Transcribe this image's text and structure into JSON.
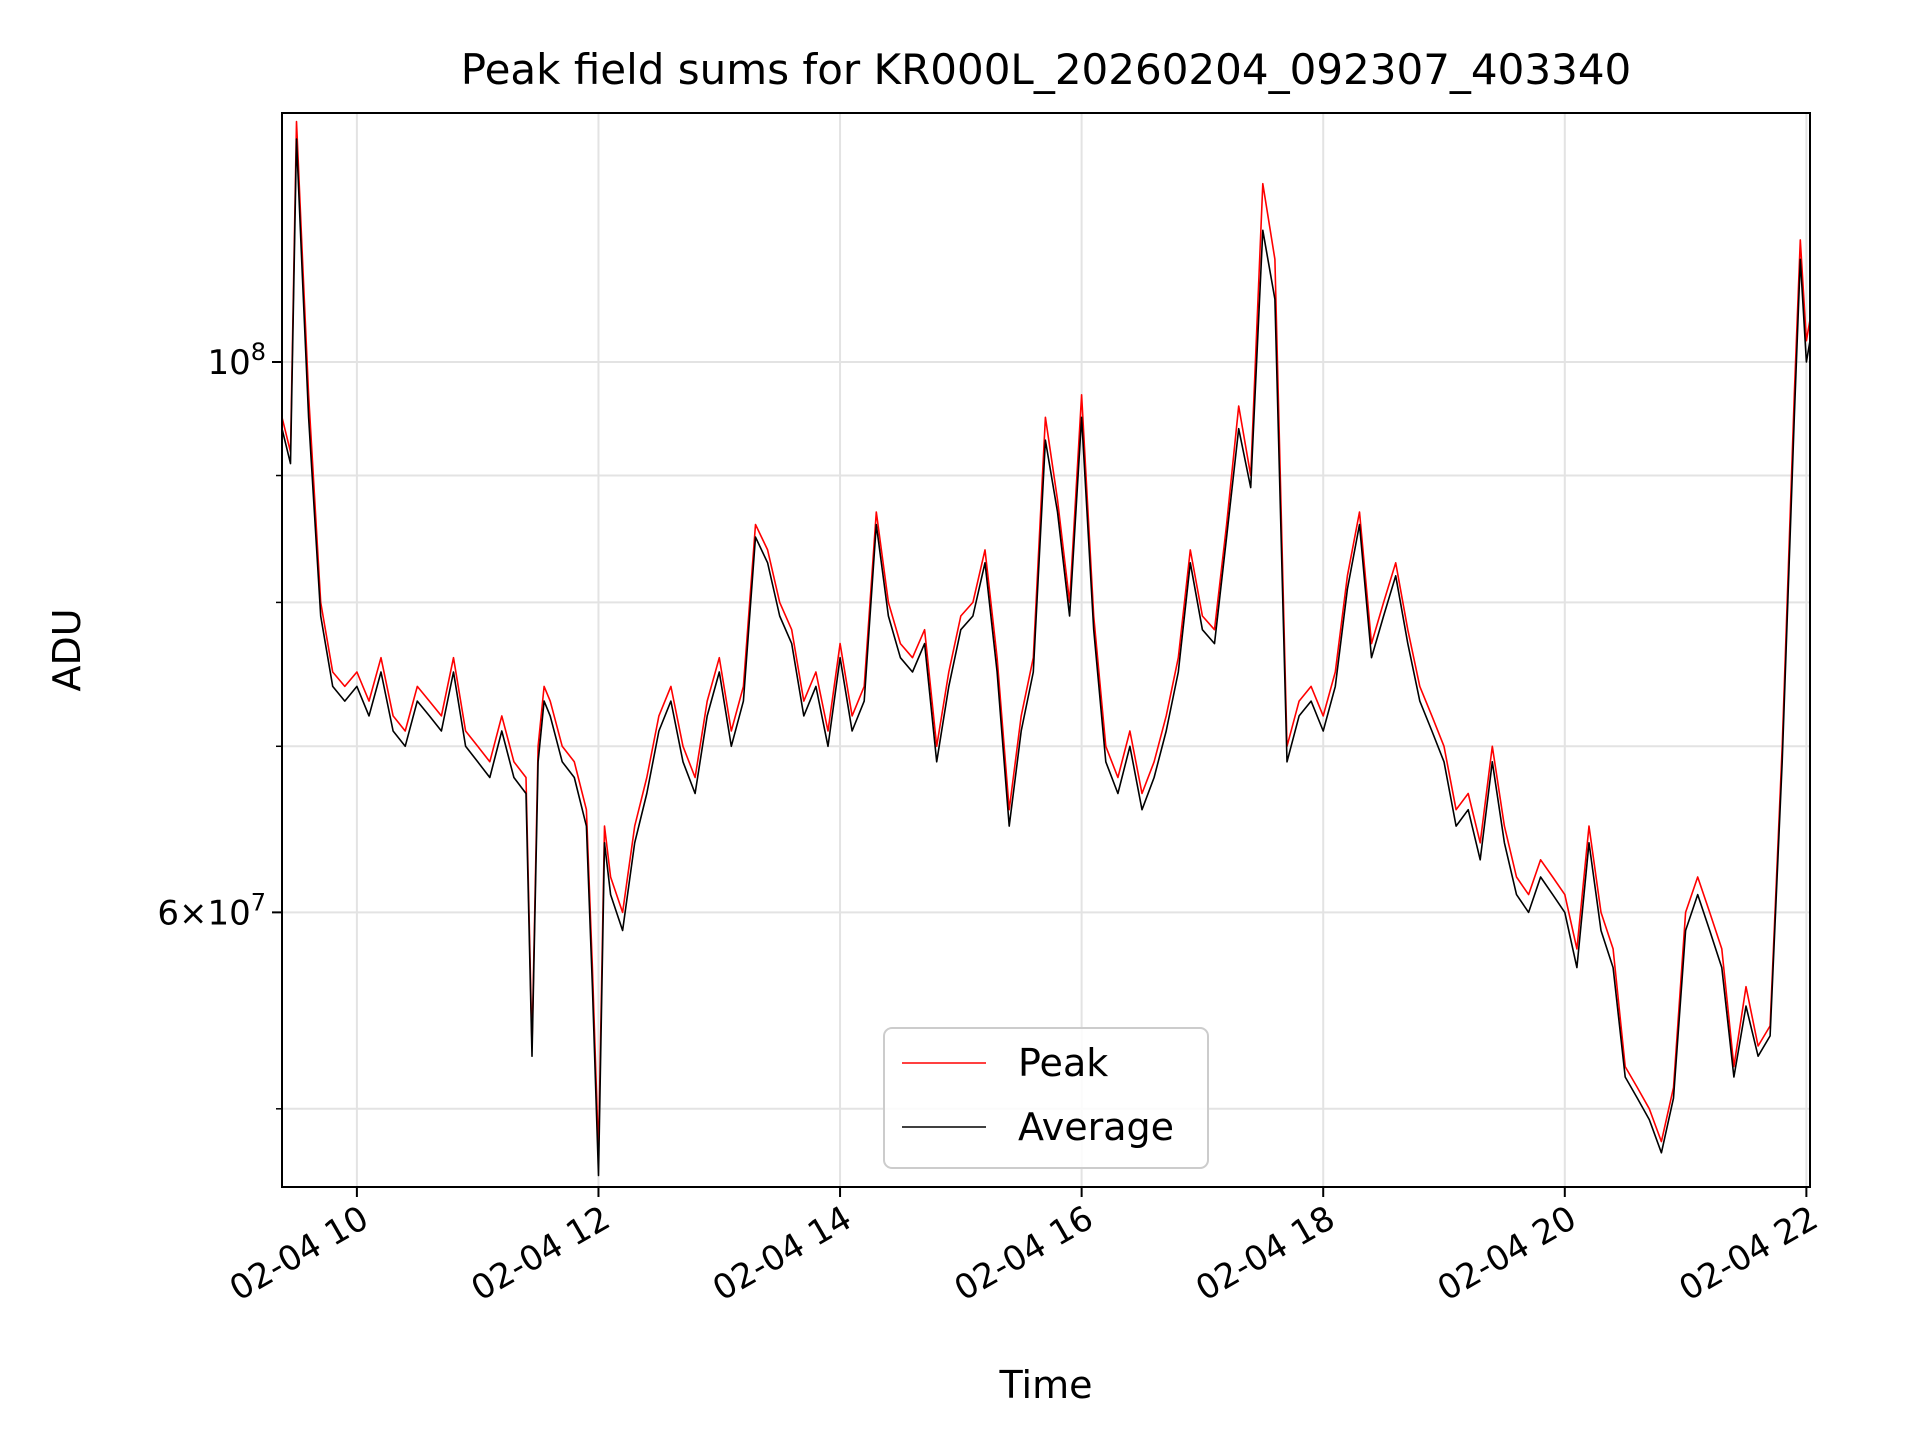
{
  "chart_data": {
    "type": "line",
    "title": "Peak field sums for KR000L_20260204_092307_403340",
    "xlabel": "Time",
    "ylabel": "ADU",
    "yscale": "log",
    "ylim": [
      46500000,
      126000000
    ],
    "xlim": [
      9.38,
      22.03
    ],
    "grid": true,
    "legend_position": "bottom-center",
    "x_ticks": [
      {
        "value": 10,
        "label": "02-04 10"
      },
      {
        "value": 12,
        "label": "02-04 12"
      },
      {
        "value": 14,
        "label": "02-04 14"
      },
      {
        "value": 16,
        "label": "02-04 16"
      },
      {
        "value": 18,
        "label": "02-04 18"
      },
      {
        "value": 20,
        "label": "02-04 20"
      },
      {
        "value": 22,
        "label": "02-04 22"
      }
    ],
    "y_major_ticks": [
      {
        "value": 100000000,
        "base": "10",
        "exp": "8",
        "label_text": "10^8"
      },
      {
        "value": 60000000,
        "mantissa": "6",
        "base": "10",
        "exp": "7",
        "label_text": "6×10^7"
      }
    ],
    "y_minor_ticks": [
      50000000,
      70000000,
      80000000,
      90000000
    ],
    "series": [
      {
        "name": "Peak",
        "color": "#ff0000",
        "x": [
          9.38,
          9.45,
          9.5,
          9.55,
          9.6,
          9.7,
          9.8,
          9.9,
          10.0,
          10.1,
          10.2,
          10.3,
          10.4,
          10.5,
          10.6,
          10.7,
          10.8,
          10.9,
          11.0,
          11.1,
          11.2,
          11.3,
          11.4,
          11.45,
          11.5,
          11.55,
          11.6,
          11.7,
          11.8,
          11.9,
          11.95,
          12.0,
          12.05,
          12.1,
          12.2,
          12.3,
          12.4,
          12.5,
          12.6,
          12.7,
          12.8,
          12.9,
          13.0,
          13.1,
          13.2,
          13.3,
          13.4,
          13.5,
          13.6,
          13.7,
          13.8,
          13.9,
          14.0,
          14.1,
          14.2,
          14.3,
          14.4,
          14.5,
          14.6,
          14.7,
          14.8,
          14.9,
          15.0,
          15.1,
          15.2,
          15.3,
          15.4,
          15.5,
          15.6,
          15.7,
          15.8,
          15.9,
          16.0,
          16.1,
          16.2,
          16.3,
          16.4,
          16.5,
          16.6,
          16.7,
          16.8,
          16.9,
          17.0,
          17.1,
          17.2,
          17.3,
          17.4,
          17.5,
          17.6,
          17.7,
          17.8,
          17.9,
          18.0,
          18.1,
          18.2,
          18.3,
          18.4,
          18.5,
          18.6,
          18.7,
          18.8,
          18.9,
          19.0,
          19.1,
          19.2,
          19.3,
          19.4,
          19.5,
          19.6,
          19.7,
          19.8,
          19.9,
          20.0,
          20.1,
          20.2,
          20.3,
          20.4,
          20.5,
          20.6,
          20.7,
          20.8,
          20.9,
          21.0,
          21.1,
          21.2,
          21.3,
          21.4,
          21.5,
          21.6,
          21.7,
          21.8,
          21.9,
          21.95,
          22.0,
          22.03
        ],
        "y": [
          95000000,
          92000000,
          125000000,
          110000000,
          97000000,
          80000000,
          75000000,
          74000000,
          75000000,
          73000000,
          76000000,
          72000000,
          71000000,
          74000000,
          73000000,
          72000000,
          76000000,
          71000000,
          70000000,
          69000000,
          72000000,
          69000000,
          68000000,
          53000000,
          70000000,
          74000000,
          73000000,
          70000000,
          69000000,
          66000000,
          57000000,
          48000000,
          65000000,
          62000000,
          60000000,
          65000000,
          68000000,
          72000000,
          74000000,
          70000000,
          68000000,
          73000000,
          76000000,
          71000000,
          74000000,
          86000000,
          84000000,
          80000000,
          78000000,
          73000000,
          75000000,
          71000000,
          77000000,
          72000000,
          74000000,
          87000000,
          80000000,
          77000000,
          76000000,
          78000000,
          70000000,
          75000000,
          79000000,
          80000000,
          84000000,
          76000000,
          66000000,
          72000000,
          76000000,
          95000000,
          88000000,
          80000000,
          97000000,
          79000000,
          70000000,
          68000000,
          71000000,
          67000000,
          69000000,
          72000000,
          76000000,
          84000000,
          79000000,
          78000000,
          86000000,
          96000000,
          90000000,
          118000000,
          110000000,
          70000000,
          73000000,
          74000000,
          72000000,
          75000000,
          82000000,
          87000000,
          77000000,
          80000000,
          83000000,
          78000000,
          74000000,
          72000000,
          70000000,
          66000000,
          67000000,
          64000000,
          70000000,
          65000000,
          62000000,
          61000000,
          63000000,
          62000000,
          61000000,
          58000000,
          65000000,
          60000000,
          58000000,
          52000000,
          51000000,
          50000000,
          48500000,
          51000000,
          60000000,
          62000000,
          60000000,
          58000000,
          52000000,
          56000000,
          53000000,
          54000000,
          70000000,
          97000000,
          112000000,
          102000000,
          104000000
        ]
      },
      {
        "name": "Average",
        "color": "#000000",
        "x": [
          9.38,
          9.45,
          9.5,
          9.55,
          9.6,
          9.7,
          9.8,
          9.9,
          10.0,
          10.1,
          10.2,
          10.3,
          10.4,
          10.5,
          10.6,
          10.7,
          10.8,
          10.9,
          11.0,
          11.1,
          11.2,
          11.3,
          11.4,
          11.45,
          11.5,
          11.55,
          11.6,
          11.7,
          11.8,
          11.9,
          11.95,
          12.0,
          12.05,
          12.1,
          12.2,
          12.3,
          12.4,
          12.5,
          12.6,
          12.7,
          12.8,
          12.9,
          13.0,
          13.1,
          13.2,
          13.3,
          13.4,
          13.5,
          13.6,
          13.7,
          13.8,
          13.9,
          14.0,
          14.1,
          14.2,
          14.3,
          14.4,
          14.5,
          14.6,
          14.7,
          14.8,
          14.9,
          15.0,
          15.1,
          15.2,
          15.3,
          15.4,
          15.5,
          15.6,
          15.7,
          15.8,
          15.9,
          16.0,
          16.1,
          16.2,
          16.3,
          16.4,
          16.5,
          16.6,
          16.7,
          16.8,
          16.9,
          17.0,
          17.1,
          17.2,
          17.3,
          17.4,
          17.5,
          17.6,
          17.7,
          17.8,
          17.9,
          18.0,
          18.1,
          18.2,
          18.3,
          18.4,
          18.5,
          18.6,
          18.7,
          18.8,
          18.9,
          19.0,
          19.1,
          19.2,
          19.3,
          19.4,
          19.5,
          19.6,
          19.7,
          19.8,
          19.9,
          20.0,
          20.1,
          20.2,
          20.3,
          20.4,
          20.5,
          20.6,
          20.7,
          20.8,
          20.9,
          21.0,
          21.1,
          21.2,
          21.3,
          21.4,
          21.5,
          21.6,
          21.7,
          21.8,
          21.9,
          21.95,
          22.0,
          22.03
        ],
        "y": [
          94000000,
          91000000,
          123000000,
          108000000,
          95000000,
          79000000,
          74000000,
          73000000,
          74000000,
          72000000,
          75000000,
          71000000,
          70000000,
          73000000,
          72000000,
          71000000,
          75000000,
          70000000,
          69000000,
          68000000,
          71000000,
          68000000,
          67000000,
          52500000,
          69000000,
          73000000,
          72000000,
          69000000,
          68000000,
          65000000,
          56000000,
          47000000,
          64000000,
          61000000,
          59000000,
          64000000,
          67000000,
          71000000,
          73000000,
          69000000,
          67000000,
          72000000,
          75000000,
          70000000,
          73000000,
          85000000,
          83000000,
          79000000,
          77000000,
          72000000,
          74000000,
          70000000,
          76000000,
          71000000,
          73000000,
          86000000,
          79000000,
          76000000,
          75000000,
          77000000,
          69000000,
          74000000,
          78000000,
          79000000,
          83000000,
          75000000,
          65000000,
          71000000,
          75000000,
          93000000,
          87000000,
          79000000,
          95000000,
          78000000,
          69000000,
          67000000,
          70000000,
          66000000,
          68000000,
          71000000,
          75000000,
          83000000,
          78000000,
          77000000,
          85000000,
          94000000,
          89000000,
          113000000,
          106000000,
          69000000,
          72000000,
          73000000,
          71000000,
          74000000,
          81000000,
          86000000,
          76000000,
          79000000,
          82000000,
          77000000,
          73000000,
          71000000,
          69000000,
          65000000,
          66000000,
          63000000,
          69000000,
          64000000,
          61000000,
          60000000,
          62000000,
          61000000,
          60000000,
          57000000,
          64000000,
          59000000,
          57000000,
          51500000,
          50500000,
          49500000,
          48000000,
          50500000,
          59000000,
          61000000,
          59000000,
          57000000,
          51500000,
          55000000,
          52500000,
          53500000,
          69000000,
          95000000,
          110000000,
          100000000,
          102000000
        ]
      }
    ]
  }
}
